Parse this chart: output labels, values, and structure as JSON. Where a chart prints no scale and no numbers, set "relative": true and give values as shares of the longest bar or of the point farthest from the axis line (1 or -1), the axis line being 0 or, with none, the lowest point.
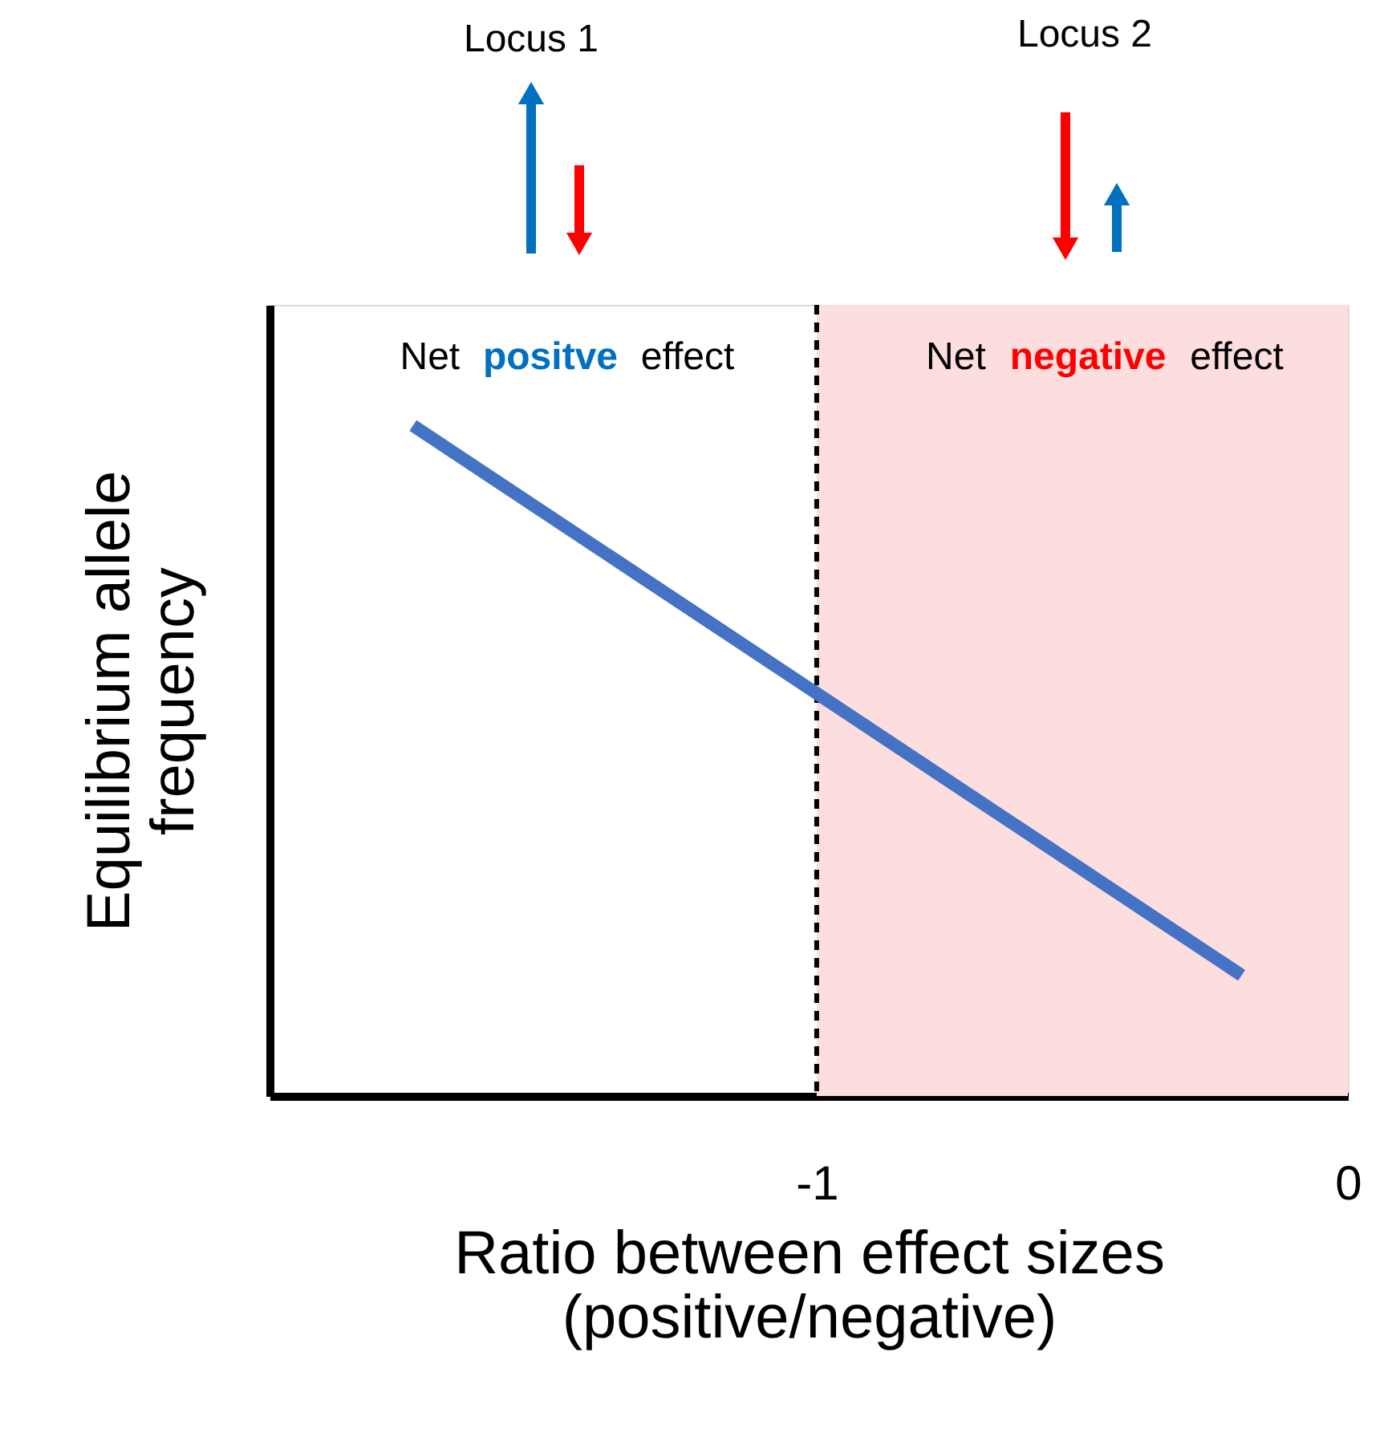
{
  "chart_data": {
    "type": "line",
    "relative": true,
    "xlabel": "Ratio between effect sizes\n(positive/negative)",
    "ylabel": "Equilibrium allele\nfrequency",
    "x": [
      -1.76,
      -0.2
    ],
    "series": [
      {
        "color": "#4472c4",
        "values": [
          1,
          0.18
        ]
      }
    ],
    "xlim": [
      -2.03,
      0
    ],
    "xticks": [
      {
        "value": -1,
        "label": "-1"
      },
      {
        "value": 0,
        "label": "0"
      }
    ],
    "tick_labels": "x",
    "ref_lines": [
      {
        "axis": "x",
        "value": -1,
        "color": "#000000",
        "line_style": "dashed"
      }
    ],
    "bands": [
      {
        "axis": "x",
        "from": -1,
        "to": 0,
        "color": "#fddede"
      }
    ],
    "annotations": [
      "Locus 1",
      "Locus 2",
      "Net positve effect",
      "Net negative effect"
    ]
  }
}
